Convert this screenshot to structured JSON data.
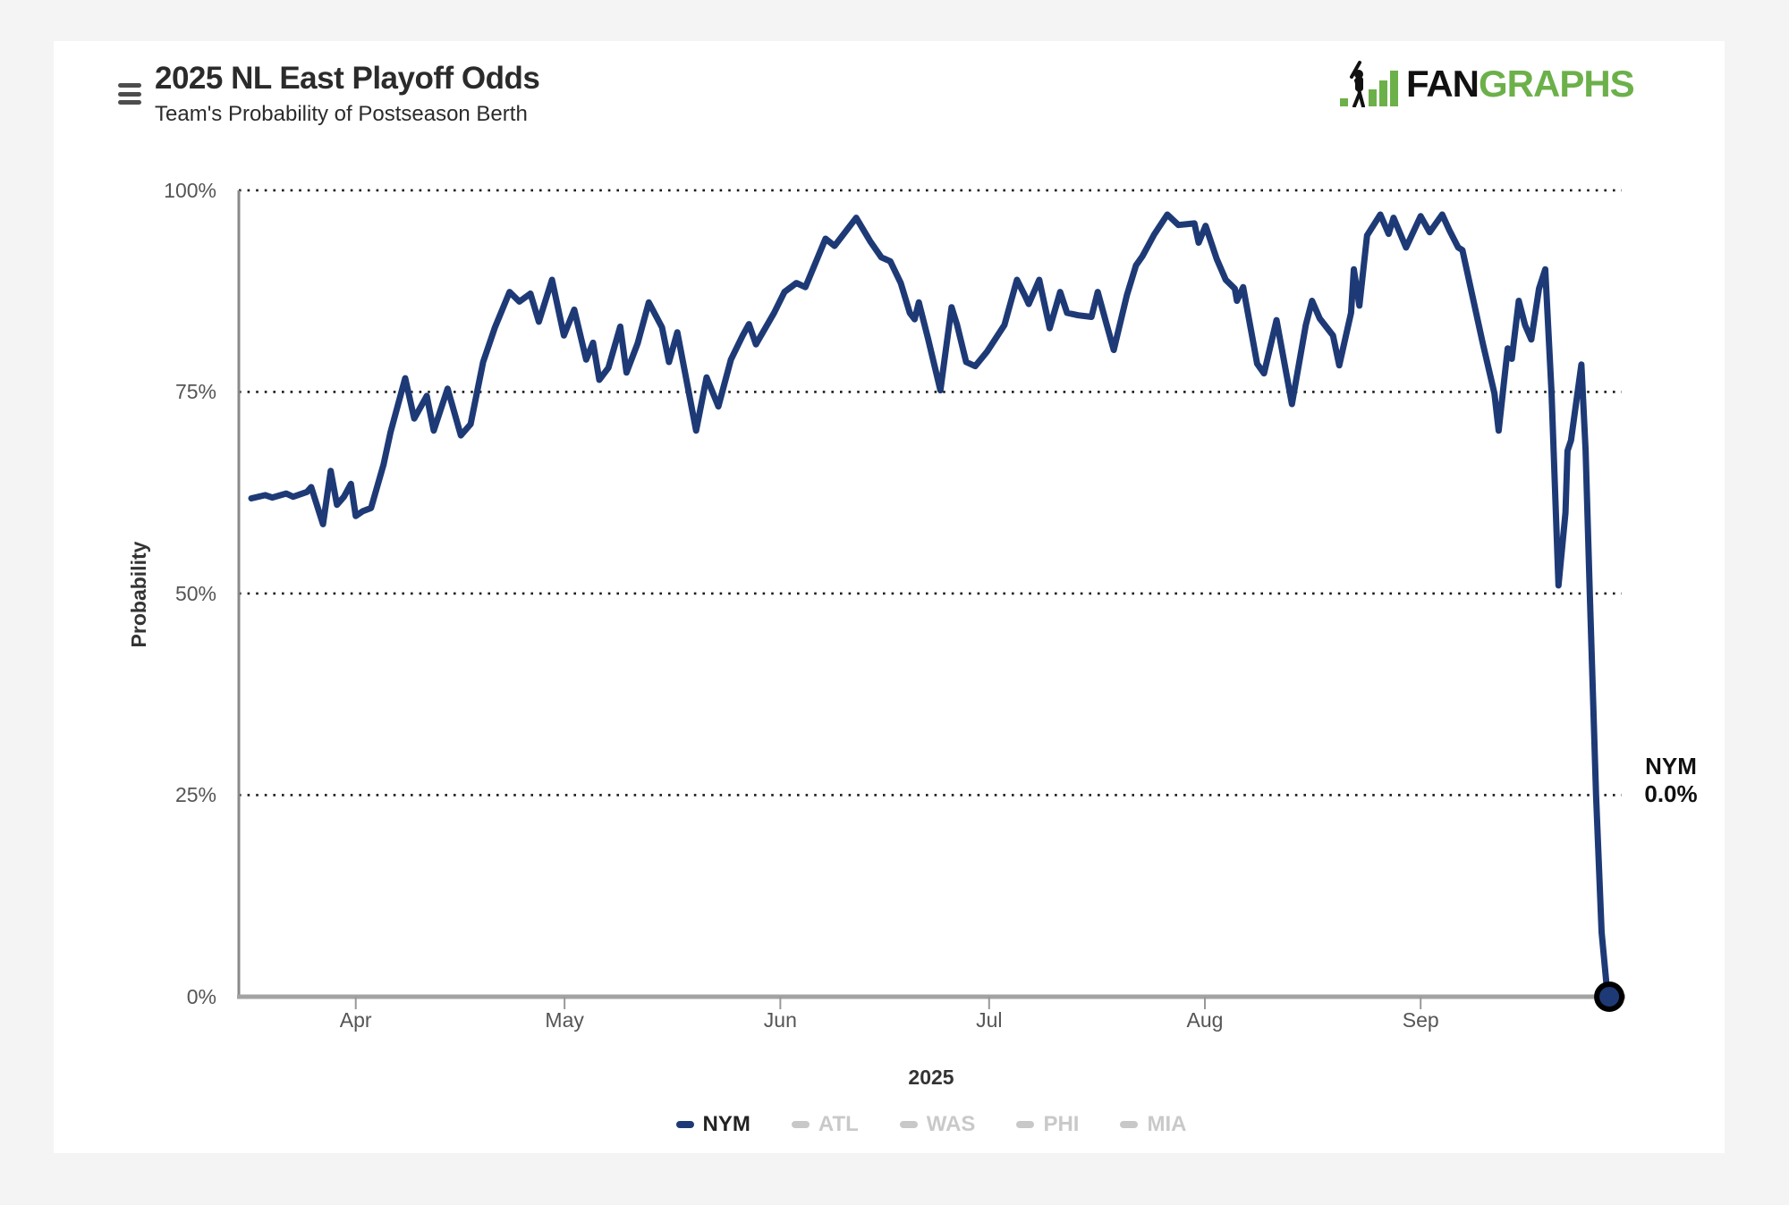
{
  "page": {
    "background": "#f4f4f5",
    "card_background": "#ffffff"
  },
  "header": {
    "menu_icon": "hamburger-icon",
    "logo": {
      "fan": "FAN",
      "graphs": "GRAPHS",
      "green": "#6cb04a",
      "black": "#111111"
    }
  },
  "chart_data": {
    "type": "line",
    "title": "2025 NL East Playoff Odds",
    "subtitle": "Team's Probability of Postseason Berth",
    "xlabel": "2025",
    "ylabel": "Probability",
    "ylim": [
      0,
      100
    ],
    "grid": "horizontal-dotted",
    "legend_position": "bottom",
    "y_ticks": [
      "100%",
      "75%",
      "50%",
      "25%",
      "0%"
    ],
    "y_tick_values": [
      100,
      75,
      50,
      25,
      0
    ],
    "x_ticks": [
      {
        "label": "Apr",
        "day": 15
      },
      {
        "label": "May",
        "day": 45
      },
      {
        "label": "Jun",
        "day": 76
      },
      {
        "label": "Jul",
        "day": 106
      },
      {
        "label": "Aug",
        "day": 137
      },
      {
        "label": "Sep",
        "day": 168
      }
    ],
    "x_range_days": [
      0,
      195.1
    ],
    "x_range_dates": [
      "Mar 17",
      "Sep 28"
    ],
    "legend": [
      {
        "label": "NYM",
        "color": "#1e3a76",
        "text_color": "#222222",
        "active": true
      },
      {
        "label": "ATL",
        "color": "#c8c8c8",
        "text_color": "#c9c9c9",
        "active": false
      },
      {
        "label": "WAS",
        "color": "#c8c8c8",
        "text_color": "#c9c9c9",
        "active": false
      },
      {
        "label": "PHI",
        "color": "#c8c8c8",
        "text_color": "#c9c9c9",
        "active": false
      },
      {
        "label": "MIA",
        "color": "#c8c8c8",
        "text_color": "#c9c9c9",
        "active": false
      }
    ],
    "end_label": {
      "team": "NYM",
      "value": "0.0%"
    },
    "end_marker": {
      "day": 195.1,
      "pct": 0.0
    },
    "series": [
      {
        "name": "NYM",
        "color": "#1e3a76",
        "line_width": 7,
        "points": [
          [
            0,
            61.8
          ],
          [
            2,
            62.2
          ],
          [
            3,
            61.9
          ],
          [
            5,
            62.4
          ],
          [
            6,
            62.0
          ],
          [
            8,
            62.6
          ],
          [
            8.6,
            63.2
          ],
          [
            10.3,
            58.6
          ],
          [
            11.4,
            65.2
          ],
          [
            12.3,
            61.0
          ],
          [
            13.3,
            62.0
          ],
          [
            14.3,
            63.6
          ],
          [
            15.0,
            59.6
          ],
          [
            16,
            60.2
          ],
          [
            17.2,
            60.6
          ],
          [
            19,
            66.0
          ],
          [
            20,
            70.0
          ],
          [
            22.1,
            76.7
          ],
          [
            23.4,
            71.7
          ],
          [
            25.2,
            74.5
          ],
          [
            26.2,
            70.2
          ],
          [
            28.2,
            75.4
          ],
          [
            30.1,
            69.6
          ],
          [
            31.5,
            71.0
          ],
          [
            33.3,
            78.7
          ],
          [
            35,
            83.0
          ],
          [
            37.1,
            87.4
          ],
          [
            38.5,
            86.2
          ],
          [
            40.1,
            87.2
          ],
          [
            41.3,
            83.7
          ],
          [
            43.2,
            88.9
          ],
          [
            44.9,
            82.0
          ],
          [
            46.4,
            85.2
          ],
          [
            48.1,
            79.0
          ],
          [
            49.1,
            81.1
          ],
          [
            50.0,
            76.5
          ],
          [
            51.3,
            78.0
          ],
          [
            53.0,
            83.1
          ],
          [
            53.9,
            77.4
          ],
          [
            55.5,
            81.0
          ],
          [
            57.1,
            86.1
          ],
          [
            59.0,
            83.0
          ],
          [
            60.0,
            78.7
          ],
          [
            61.2,
            82.4
          ],
          [
            63.9,
            70.2
          ],
          [
            65.4,
            76.8
          ],
          [
            67.1,
            73.2
          ],
          [
            68.9,
            79.0
          ],
          [
            70.6,
            82.0
          ],
          [
            71.5,
            83.4
          ],
          [
            72.5,
            80.9
          ],
          [
            75.1,
            84.8
          ],
          [
            76.6,
            87.4
          ],
          [
            78.3,
            88.5
          ],
          [
            79.6,
            88.0
          ],
          [
            82.5,
            94.0
          ],
          [
            83.8,
            93.1
          ],
          [
            86.9,
            96.6
          ],
          [
            88.9,
            93.7
          ],
          [
            90.5,
            91.7
          ],
          [
            91.8,
            91.2
          ],
          [
            93.3,
            88.5
          ],
          [
            94.6,
            84.8
          ],
          [
            95.3,
            84.0
          ],
          [
            95.9,
            86.1
          ],
          [
            97.2,
            81.7
          ],
          [
            99.0,
            75.2
          ],
          [
            100.6,
            85.5
          ],
          [
            101.4,
            83.3
          ],
          [
            102.7,
            78.7
          ],
          [
            104.0,
            78.2
          ],
          [
            105.7,
            80.0
          ],
          [
            108.2,
            83.3
          ],
          [
            110.0,
            88.9
          ],
          [
            111.1,
            87.0
          ],
          [
            111.7,
            85.9
          ],
          [
            113.2,
            88.9
          ],
          [
            114.7,
            82.9
          ],
          [
            116.2,
            87.4
          ],
          [
            117.2,
            84.8
          ],
          [
            118.8,
            84.5
          ],
          [
            120.7,
            84.3
          ],
          [
            121.6,
            87.4
          ],
          [
            122.9,
            83.3
          ],
          [
            123.9,
            80.2
          ],
          [
            125.8,
            87.0
          ],
          [
            127.1,
            90.7
          ],
          [
            128.0,
            91.8
          ],
          [
            129.7,
            94.5
          ],
          [
            131.6,
            97.0
          ],
          [
            133.2,
            95.7
          ],
          [
            135.5,
            95.9
          ],
          [
            136.1,
            93.5
          ],
          [
            137.1,
            95.6
          ],
          [
            138.7,
            91.5
          ],
          [
            140.0,
            88.9
          ],
          [
            141.3,
            87.8
          ],
          [
            141.6,
            86.3
          ],
          [
            142.5,
            88.0
          ],
          [
            144.5,
            78.5
          ],
          [
            145.5,
            77.3
          ],
          [
            147.3,
            83.9
          ],
          [
            149.5,
            73.5
          ],
          [
            151.5,
            83.3
          ],
          [
            152.4,
            86.3
          ],
          [
            153.5,
            84.1
          ],
          [
            155.4,
            82.0
          ],
          [
            156.3,
            78.3
          ],
          [
            158.0,
            84.8
          ],
          [
            158.4,
            90.2
          ],
          [
            159.2,
            85.7
          ],
          [
            160.3,
            94.4
          ],
          [
            162.2,
            97.0
          ],
          [
            163.4,
            94.6
          ],
          [
            164.1,
            96.6
          ],
          [
            165.9,
            92.9
          ],
          [
            168.0,
            96.8
          ],
          [
            169.3,
            94.8
          ],
          [
            171.1,
            97.0
          ],
          [
            172.1,
            95.1
          ],
          [
            173.4,
            92.9
          ],
          [
            174.0,
            92.6
          ],
          [
            176.9,
            81.1
          ],
          [
            178.6,
            74.8
          ],
          [
            179.2,
            70.2
          ],
          [
            180.5,
            80.4
          ],
          [
            181.1,
            79.1
          ],
          [
            182.1,
            86.3
          ],
          [
            183.0,
            83.3
          ],
          [
            183.9,
            81.5
          ],
          [
            185.0,
            87.8
          ],
          [
            185.9,
            90.2
          ],
          [
            186.8,
            75.0
          ],
          [
            187.8,
            51.0
          ],
          [
            188.8,
            60.0
          ],
          [
            189.1,
            67.7
          ],
          [
            189.6,
            69.0
          ],
          [
            191.1,
            78.4
          ],
          [
            191.7,
            67.8
          ],
          [
            192.3,
            50.0
          ],
          [
            193.2,
            25.0
          ],
          [
            194.0,
            8.0
          ],
          [
            194.7,
            1.5
          ],
          [
            195.1,
            0.0
          ]
        ]
      }
    ],
    "styles": {
      "gridline_color": "#1a1a1a",
      "axis_color": "#a3a3a3",
      "y_axis_color": "#8a8a8a",
      "marker_fill": "#1e3a76",
      "marker_stroke": "#000000"
    }
  }
}
